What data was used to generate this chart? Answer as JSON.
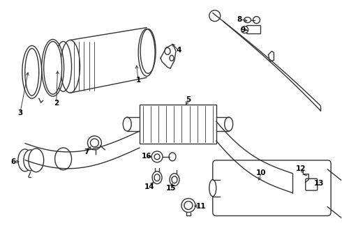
{
  "bg_color": "#ffffff",
  "line_color": "#333333",
  "label_color": "#000000",
  "lw": 1.0
}
